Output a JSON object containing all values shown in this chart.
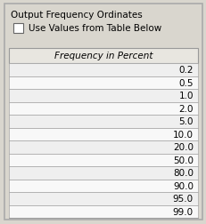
{
  "title": "Output Frequency Ordinates",
  "checkbox_label": "Use Values from Table Below",
  "column_header": "Frequency in Percent",
  "values": [
    "0.2",
    "0.5",
    "1.0",
    "2.0",
    "5.0",
    "10.0",
    "20.0",
    "50.0",
    "80.0",
    "90.0",
    "95.0",
    "99.0"
  ],
  "bg_color": "#d9d6ce",
  "table_bg_light": "#efefef",
  "table_bg_white": "#f8f8f8",
  "header_bg": "#e8e6e0",
  "border_color": "#999999",
  "outer_border_color": "#aaaaaa",
  "text_color": "#000000",
  "title_fontsize": 7.5,
  "cell_fontsize": 7.5,
  "header_fontsize": 7.5,
  "figw": 2.32,
  "figh": 2.53,
  "dpi": 100
}
